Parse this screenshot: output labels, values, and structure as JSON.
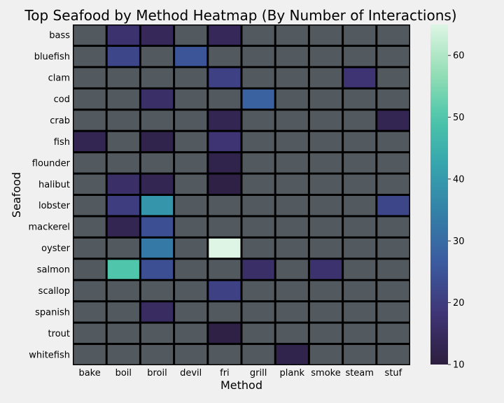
{
  "chart_data": {
    "type": "heatmap",
    "title": "Top Seafood by Method Heatmap (By Number of Interactions)",
    "xlabel": "Method",
    "ylabel": "Seafood",
    "x_categories": [
      "bake",
      "boil",
      "broil",
      "devil",
      "fri",
      "grill",
      "plank",
      "smoke",
      "steam",
      "stuf"
    ],
    "y_categories": [
      "bass",
      "bluefish",
      "clam",
      "cod",
      "crab",
      "fish",
      "flounder",
      "halibut",
      "lobster",
      "mackerel",
      "oyster",
      "salmon",
      "scallop",
      "spanish",
      "trout",
      "whitefish"
    ],
    "values": [
      [
        null,
        17,
        14,
        null,
        14,
        null,
        null,
        null,
        null,
        null
      ],
      [
        null,
        22,
        null,
        25,
        null,
        null,
        null,
        null,
        null,
        null
      ],
      [
        null,
        null,
        null,
        null,
        21,
        null,
        null,
        null,
        18,
        null
      ],
      [
        null,
        null,
        16,
        null,
        null,
        28,
        null,
        null,
        null,
        null
      ],
      [
        null,
        null,
        null,
        null,
        13,
        null,
        null,
        null,
        null,
        13
      ],
      [
        13,
        null,
        12,
        null,
        18,
        null,
        null,
        null,
        null,
        null
      ],
      [
        null,
        null,
        null,
        null,
        12,
        null,
        null,
        null,
        null,
        null
      ],
      [
        null,
        16,
        13,
        null,
        11,
        null,
        null,
        null,
        null,
        null
      ],
      [
        null,
        20,
        39,
        null,
        null,
        null,
        null,
        null,
        null,
        22
      ],
      [
        null,
        13,
        24,
        null,
        null,
        null,
        null,
        null,
        null,
        null
      ],
      [
        null,
        null,
        33,
        null,
        65,
        null,
        null,
        null,
        null,
        null
      ],
      [
        null,
        50,
        24,
        null,
        null,
        16,
        null,
        17,
        null,
        null
      ],
      [
        null,
        null,
        null,
        null,
        21,
        null,
        null,
        null,
        null,
        null
      ],
      [
        null,
        null,
        15,
        null,
        null,
        null,
        null,
        null,
        null,
        null
      ],
      [
        null,
        null,
        null,
        null,
        11,
        null,
        null,
        null,
        null,
        null
      ],
      [
        null,
        null,
        null,
        null,
        null,
        null,
        12,
        null,
        null,
        null
      ]
    ],
    "missing_color": "#535a5f",
    "colorbar": {
      "min": 10,
      "max": 65,
      "ticks": [
        10,
        20,
        30,
        40,
        50,
        60
      ],
      "colormap": "mako-like (dark purple to mint white)"
    }
  }
}
